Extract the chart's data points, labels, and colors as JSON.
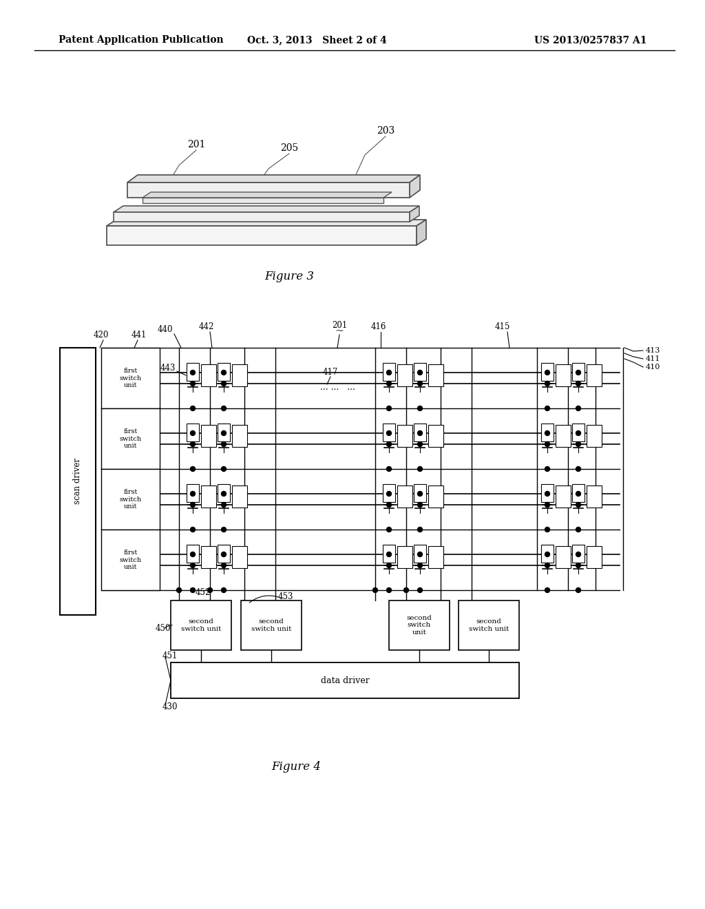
{
  "bg_color": "#ffffff",
  "header_left": "Patent Application Publication",
  "header_mid": "Oct. 3, 2013   Sheet 2 of 4",
  "header_right": "US 2013/0257837 A1",
  "fig3_caption": "Figure 3",
  "fig4_caption": "Figure 4"
}
